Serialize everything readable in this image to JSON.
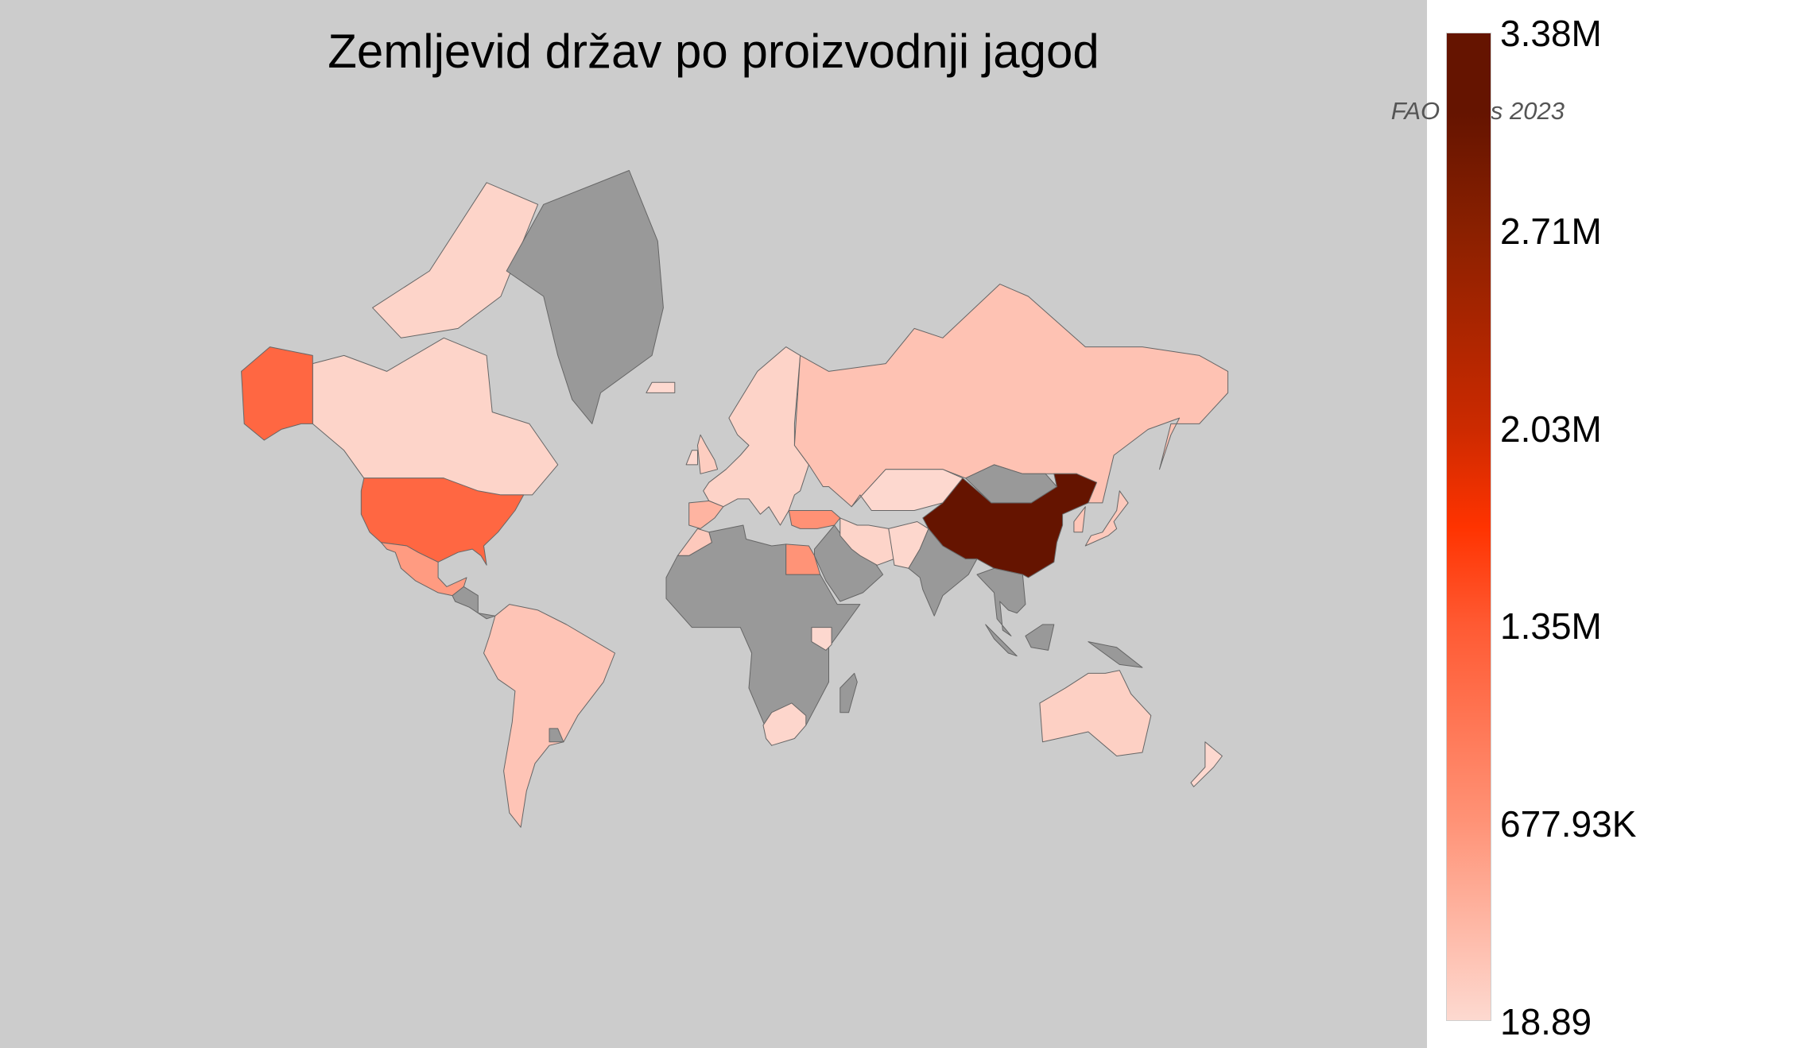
{
  "title": "Zemljevid držav po proizvodnji jagod",
  "subtitle": "FAO Stats 2023",
  "colors": {
    "background": "#cccccc",
    "no_data": "#999999",
    "border": "#666666"
  },
  "chart_data": {
    "type": "choropleth",
    "projection": "mercator",
    "colorbar": {
      "min": 18.89,
      "max": 3380000,
      "tick_labels": [
        "18.89",
        "677.93K",
        "1.35M",
        "2.03M",
        "2.71M",
        "3.38M"
      ],
      "colorscale": [
        [
          0,
          "#fdd9d0"
        ],
        [
          0.2,
          "#ff9377"
        ],
        [
          0.4,
          "#ff5a33"
        ],
        [
          0.5,
          "#ff3300"
        ],
        [
          0.6,
          "#cc2a00"
        ],
        [
          0.8,
          "#8a2000"
        ],
        [
          0.92,
          "#651400"
        ],
        [
          1,
          "#651400"
        ]
      ]
    },
    "countries": [
      {
        "name": "China",
        "value": 3380000
      },
      {
        "name": "United States",
        "value": 1200000
      },
      {
        "name": "Turkey",
        "value": 700000
      },
      {
        "name": "Egypt",
        "value": 680000
      },
      {
        "name": "Mexico",
        "value": 600000
      },
      {
        "name": "Spain",
        "value": 360000
      },
      {
        "name": "Russia",
        "value": 220000
      },
      {
        "name": "Morocco",
        "value": 150000
      },
      {
        "name": "Europe (other)",
        "value": 60000
      },
      {
        "name": "United Kingdom",
        "value": 120000
      },
      {
        "name": "Ireland",
        "value": 10000
      },
      {
        "name": "Iceland",
        "value": 500
      },
      {
        "name": "Canada",
        "value": 50000
      },
      {
        "name": "South America",
        "value": 200000
      },
      {
        "name": "Kazakhstan",
        "value": 5000
      },
      {
        "name": "Iran",
        "value": 50000
      },
      {
        "name": "Pakistan-Afghanistan",
        "value": 20000
      },
      {
        "name": "South Korea",
        "value": 180000
      },
      {
        "name": "Japan",
        "value": 150000
      },
      {
        "name": "Australia",
        "value": 90000
      },
      {
        "name": "New Zealand",
        "value": 10000
      },
      {
        "name": "South Africa",
        "value": 30000
      },
      {
        "name": "Kenya",
        "value": 5000
      },
      {
        "name": "Greenland",
        "value": null
      },
      {
        "name": "Canadian Arctic Islands",
        "value": 50000
      },
      {
        "name": "Central America",
        "value": null
      },
      {
        "name": "Uruguay",
        "value": null
      },
      {
        "name": "Africa (other)",
        "value": null
      },
      {
        "name": "Madagascar",
        "value": null
      },
      {
        "name": "Arabian Peninsula",
        "value": null
      },
      {
        "name": "India",
        "value": null
      },
      {
        "name": "Mongolia",
        "value": null
      },
      {
        "name": "Southeast Asia",
        "value": null
      },
      {
        "name": "Borneo",
        "value": null
      },
      {
        "name": "Sumatra",
        "value": null
      },
      {
        "name": "New Guinea",
        "value": null
      }
    ]
  }
}
